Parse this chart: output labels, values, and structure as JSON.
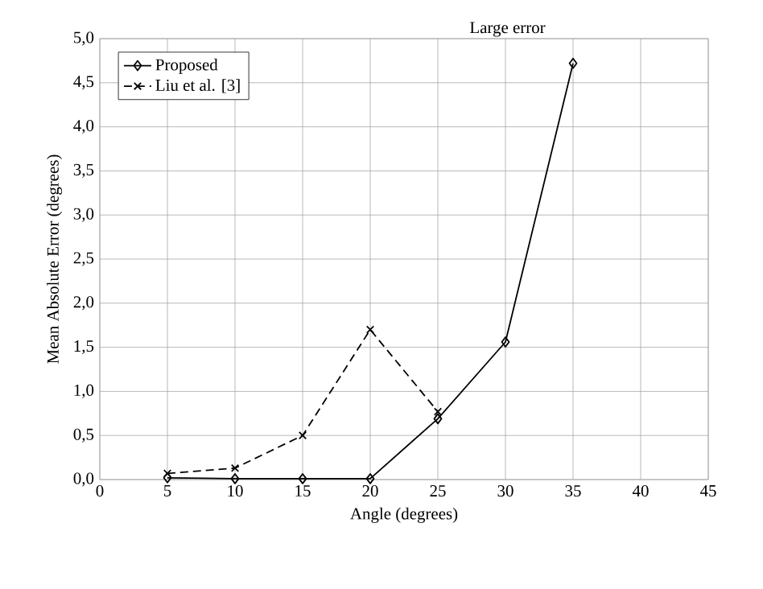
{
  "chart_data": {
    "type": "line",
    "xlabel": "Angle (degrees)",
    "ylabel": "Mean Absolute Error (degrees)",
    "x": [
      5,
      10,
      15,
      20,
      25,
      30,
      35
    ],
    "series": [
      {
        "name": "Proposed",
        "color": "#000000",
        "marker": "diamond",
        "line_style": "solid",
        "values": [
          0.02,
          0.01,
          0.01,
          0.01,
          0.69,
          1.56,
          4.72
        ]
      },
      {
        "name": "Liu et al. [3]",
        "color": "#000000",
        "marker": "cross",
        "line_style": "dashed",
        "x": [
          5,
          10,
          15,
          20,
          25
        ],
        "values": [
          0.07,
          0.13,
          0.5,
          1.7,
          0.77
        ]
      }
    ],
    "xlim": [
      0,
      45
    ],
    "xticks": [
      0,
      5,
      10,
      15,
      20,
      25,
      30,
      35,
      40,
      45
    ],
    "ylim": [
      0,
      5
    ],
    "yticks": [
      {
        "value": 0,
        "label": "0,0"
      },
      {
        "value": 0.5,
        "label": "0,5"
      },
      {
        "value": 1,
        "label": "1,0"
      },
      {
        "value": 1.5,
        "label": "1,5"
      },
      {
        "value": 2,
        "label": "2,0"
      },
      {
        "value": 2.5,
        "label": "2,5"
      },
      {
        "value": 3,
        "label": "3,0"
      },
      {
        "value": 3.5,
        "label": "3,5"
      },
      {
        "value": 4,
        "label": "4,0"
      },
      {
        "value": 4.5,
        "label": "4,5"
      },
      {
        "value": 5,
        "label": "5,0"
      }
    ],
    "annotations": [
      "Large error"
    ],
    "grid": true,
    "legend": "top left"
  }
}
